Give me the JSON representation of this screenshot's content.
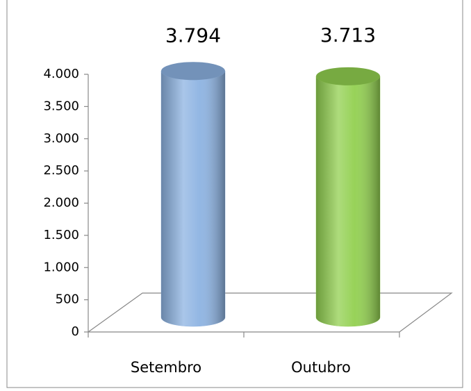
{
  "chart_data": {
    "type": "bar",
    "categories": [
      "Setembro",
      "Outubro"
    ],
    "values": [
      3794,
      3713
    ],
    "value_labels": [
      "3.794",
      "3.713"
    ],
    "colors": [
      "#8db3e2",
      "#92d050"
    ],
    "ylim": [
      0,
      4000
    ],
    "yticks": [
      0,
      500,
      {
        "value": 1000,
        "label": "1.000"
      },
      {
        "value": 1500,
        "label": "1.500"
      },
      {
        "value": 2000,
        "label": "2.000"
      },
      {
        "value": 2500,
        "label": "2.500"
      },
      {
        "value": 3000,
        "label": "3.000"
      },
      {
        "value": 3500,
        "label": "3.500"
      },
      {
        "value": 4000,
        "label": "4.000"
      }
    ],
    "grid": false
  }
}
